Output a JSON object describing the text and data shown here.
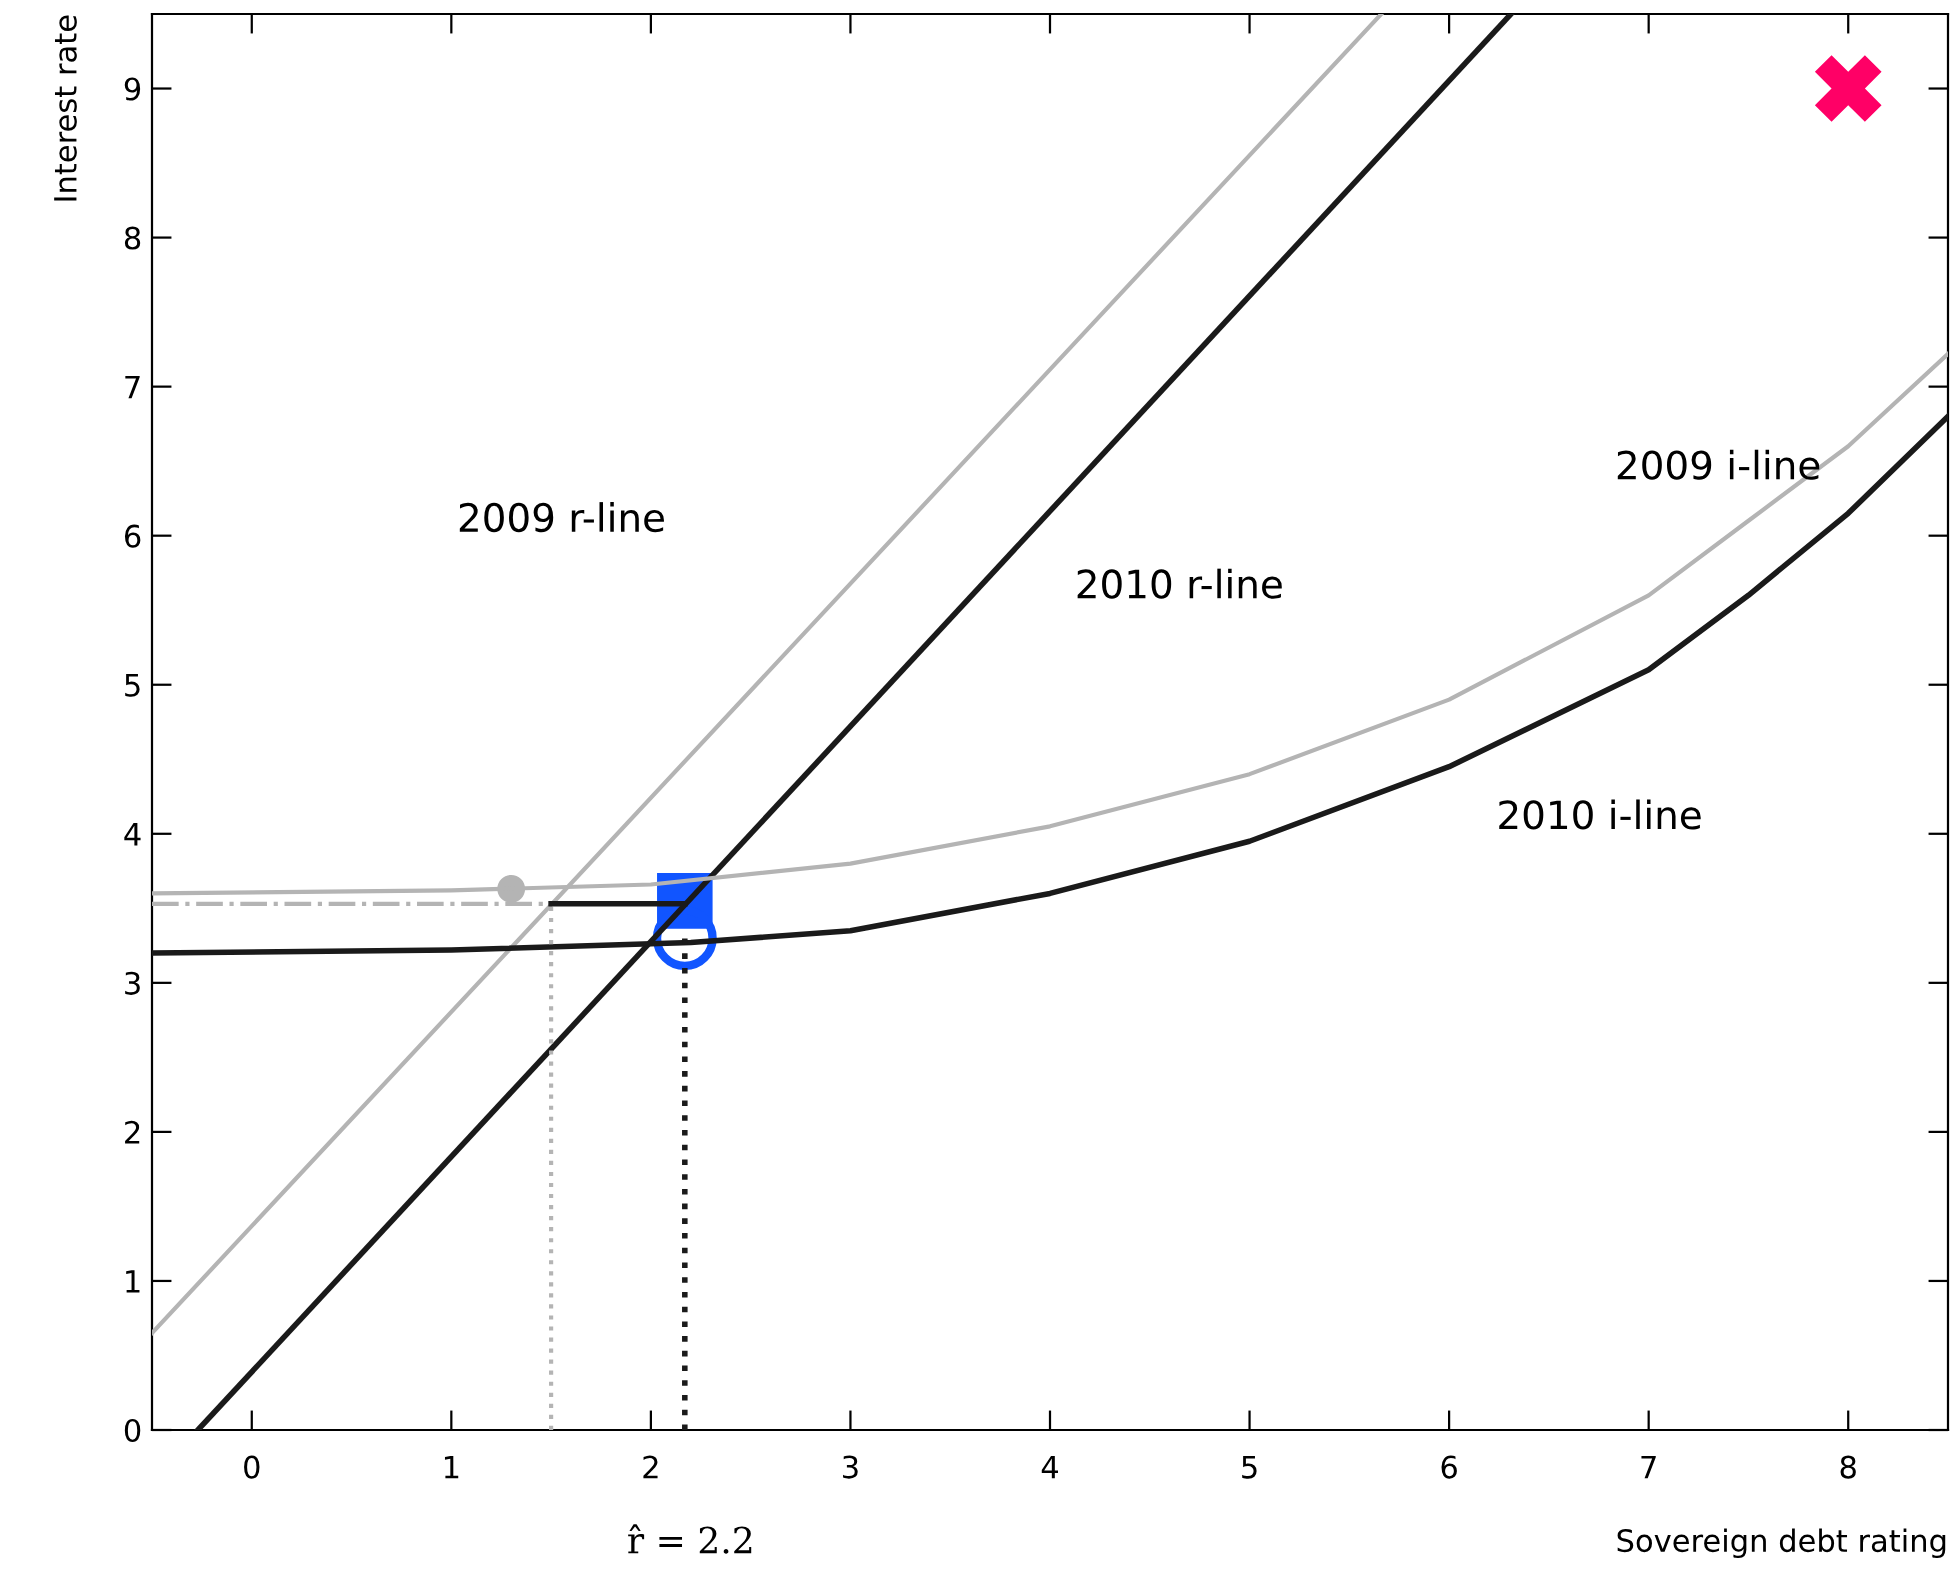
{
  "chart_data": {
    "type": "line",
    "xlabel": "Sovereign debt rating",
    "ylabel": "Interest rate",
    "xlim": [
      -0.5,
      8.5
    ],
    "ylim": [
      0,
      9.5
    ],
    "xticks": [
      0,
      1,
      2,
      3,
      4,
      5,
      6,
      7,
      8
    ],
    "yticks": [
      0,
      1,
      2,
      3,
      4,
      5,
      6,
      7,
      8,
      9
    ],
    "grid": false,
    "legend": false,
    "series": [
      {
        "color": "#b4b4b4",
        "x": [
          -0.5,
          5.66
        ],
        "values": [
          0.65,
          9.5
        ]
      },
      {
        "color": "#1a1a1a",
        "x": [
          -0.27,
          6.31
        ],
        "values": [
          0,
          9.5
        ]
      },
      {
        "color": "#b4b4b4",
        "x": [
          -0.5,
          1,
          2,
          3,
          4,
          5,
          6,
          7,
          7.5,
          8,
          8.5
        ],
        "values": [
          3.6,
          3.62,
          3.66,
          3.8,
          4.05,
          4.4,
          4.9,
          5.6,
          6.1,
          6.6,
          7.22
        ]
      },
      {
        "color": "#1a1a1a",
        "x": [
          -0.5,
          1,
          2.2,
          3,
          4,
          5,
          6,
          7,
          7.5,
          8,
          8.5
        ],
        "values": [
          3.2,
          3.22,
          3.27,
          3.35,
          3.6,
          3.95,
          4.45,
          5.1,
          5.6,
          6.15,
          6.8
        ]
      },
      {
        "color": "#b4b4b4",
        "line_style": "dashdot",
        "x": [
          -0.5,
          1.5
        ],
        "values": [
          3.53,
          3.53
        ]
      },
      {
        "color": "#1a1a1a",
        "x": [
          1.5,
          2.17
        ],
        "values": [
          3.53,
          3.53
        ]
      },
      {
        "color": "#b4b4b4",
        "line_style": "dotted",
        "x": [
          1.5,
          1.5
        ],
        "values": [
          0,
          3.53
        ]
      },
      {
        "color": "#1a1a1a",
        "line_style": "dotted",
        "x": [
          2.17,
          2.17
        ],
        "values": [
          0,
          3.3
        ]
      },
      {
        "type": "scatter",
        "color": "#b4b4b4",
        "marker": "circle",
        "x": [
          1.3
        ],
        "values": [
          3.63
        ]
      },
      {
        "type": "scatter",
        "color": "#1155ff",
        "marker": "square",
        "x": [
          2.17
        ],
        "values": [
          3.55
        ]
      },
      {
        "type": "scatter",
        "color": "#1155ff",
        "marker": "circle",
        "x": [
          2.17
        ],
        "values": [
          3.3
        ]
      },
      {
        "type": "scatter",
        "color": "#ff0066",
        "marker": "cross",
        "x": [
          8
        ],
        "values": [
          9
        ]
      }
    ],
    "annotations": [
      "2009 r-line",
      "2010 r-line",
      "2009 i-line",
      "2010 i-line",
      "r̂ = 2.2"
    ]
  }
}
